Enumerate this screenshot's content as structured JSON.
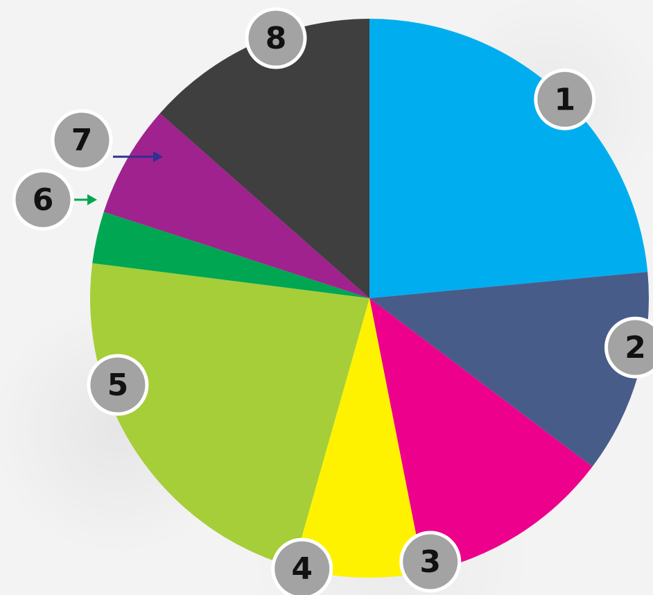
{
  "chart_data": {
    "type": "pie",
    "title": "",
    "start_angle_deg": 0,
    "direction": "clockwise",
    "slices": [
      {
        "label": "1",
        "value": 23.5,
        "color": "#00AEEF"
      },
      {
        "label": "2",
        "value": 11.8,
        "color": "#485C8A"
      },
      {
        "label": "3",
        "value": 11.6,
        "color": "#EC008C"
      },
      {
        "label": "4",
        "value": 7.5,
        "color": "#FFF200"
      },
      {
        "label": "5",
        "value": 22.6,
        "color": "#A6CE39"
      },
      {
        "label": "6",
        "value": 3.0,
        "color": "#00A651"
      },
      {
        "label": "7",
        "value": 6.5,
        "color": "#A0228E"
      },
      {
        "label": "8",
        "value": 13.5,
        "color": "#3F3F3F"
      }
    ],
    "badge_color": "#A3A3A3",
    "badge_border": "#FFFFFF"
  }
}
